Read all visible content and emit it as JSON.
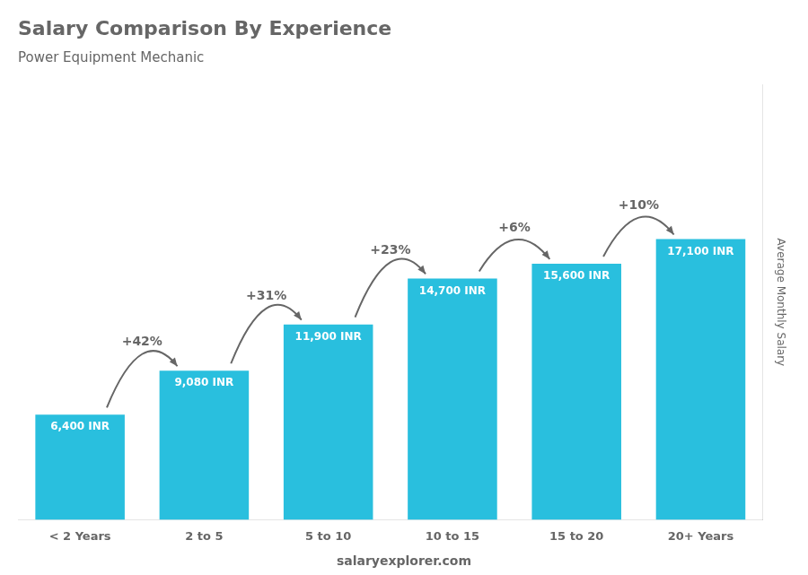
{
  "chart_data": {
    "type": "bar",
    "title": "Salary Comparison By Experience",
    "subtitle": "Power Equipment Mechanic",
    "categories": [
      "< 2 Years",
      "2 to 5",
      "5 to 10",
      "10 to 15",
      "15 to 20",
      "20+ Years"
    ],
    "values": [
      6400,
      9080,
      11900,
      14700,
      15600,
      17100
    ],
    "value_labels": [
      "6,400 INR",
      "9,080 INR",
      "11,900 INR",
      "14,700 INR",
      "15,600 INR",
      "17,100 INR"
    ],
    "data_labels": true,
    "color": "#29bfde",
    "ylabel": "Average Monthly Salary",
    "ylim": [
      0,
      26505
    ],
    "yticks": [],
    "grid": false,
    "tick_labels": "x",
    "annotations": [
      {
        "text": "+42%",
        "from": "< 2 Years",
        "to": "2 to 5"
      },
      {
        "text": "+31%",
        "from": "2 to 5",
        "to": "5 to 10"
      },
      {
        "text": "+23%",
        "from": "5 to 10",
        "to": "10 to 15"
      },
      {
        "text": "+6%",
        "from": "10 to 15",
        "to": "15 to 20"
      },
      {
        "text": "+10%",
        "from": "15 to 20",
        "to": "20+ Years"
      },
      {
        "text": "salaryexplorer.com"
      }
    ]
  }
}
